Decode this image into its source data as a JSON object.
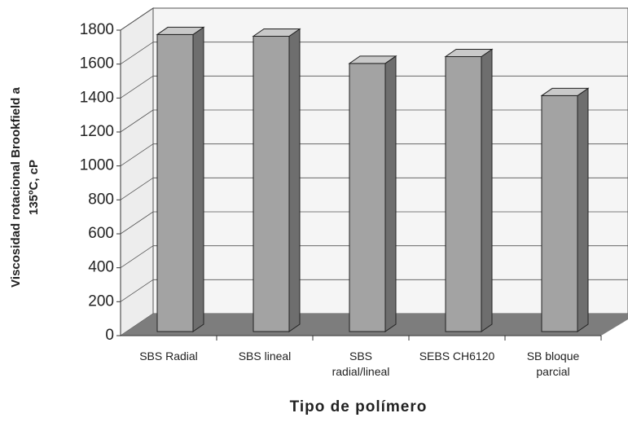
{
  "chart_data": {
    "type": "bar3d",
    "ylabel": [
      "Viscosidad rotacional Brookfield a",
      "135ºC, cP"
    ],
    "xlabel": "Tipo de polímero",
    "categories": [
      "SBS Radial",
      "SBS lineal",
      "SBS radial/lineal",
      "SEBS CH6120",
      "SB bloque parcial"
    ],
    "values": [
      1750,
      1740,
      1580,
      1620,
      1390
    ],
    "color": "#a3a3a3",
    "ylim": [
      0,
      1800
    ],
    "yticks": [
      0,
      200,
      400,
      600,
      800,
      1000,
      1200,
      1400,
      1600,
      1800
    ],
    "grid": true
  }
}
